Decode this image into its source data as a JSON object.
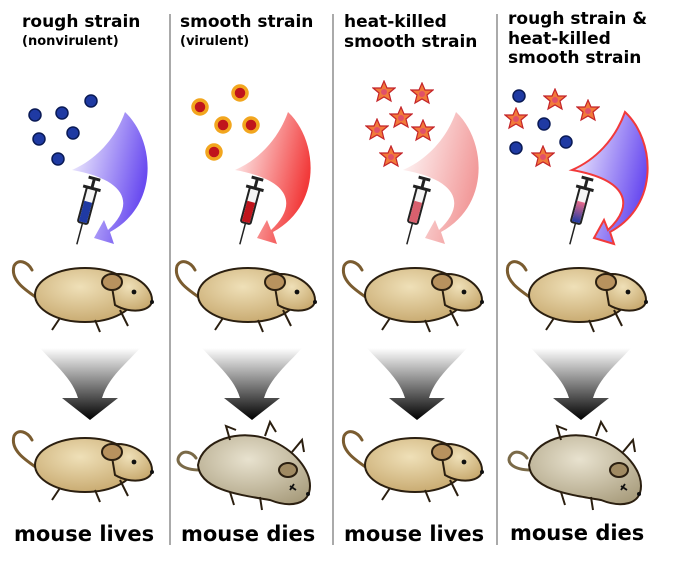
{
  "panels": [
    {
      "title": "rough strain",
      "subtitle": "(nonvirulent)",
      "result": "mouse lives",
      "injected": "rough strain (nonvirulent) cells",
      "outcome_state": "alive"
    },
    {
      "title": "smooth strain",
      "subtitle": "(virulent)",
      "result": "mouse dies",
      "injected": "smooth strain (virulent) cells",
      "outcome_state": "dead"
    },
    {
      "title": "heat-killed",
      "title_line2": "smooth strain",
      "result": "mouse lives",
      "injected": "heat-killed smooth strain cells",
      "outcome_state": "alive"
    },
    {
      "title": "rough strain &",
      "title_line2": "heat-killed",
      "title_line3": "smooth strain",
      "result": "mouse dies",
      "injected": "rough strain plus heat-killed smooth strain cells",
      "outcome_state": "dead"
    }
  ],
  "colors": {
    "rough_cell": "#1f3aa3",
    "smooth_cell_fill": "#c0141c",
    "smooth_cell_ring": "#f2a61e",
    "heat_killed_star": "#f27a3a",
    "blue_arrow": "#6a4cf0",
    "red_arrow": "#f23a3a",
    "pink_arrow": "#f29a9a",
    "mouse_fur": "#d9bf86",
    "dead_mouse_fur": "#c9bfa3",
    "divider": "#555555"
  }
}
